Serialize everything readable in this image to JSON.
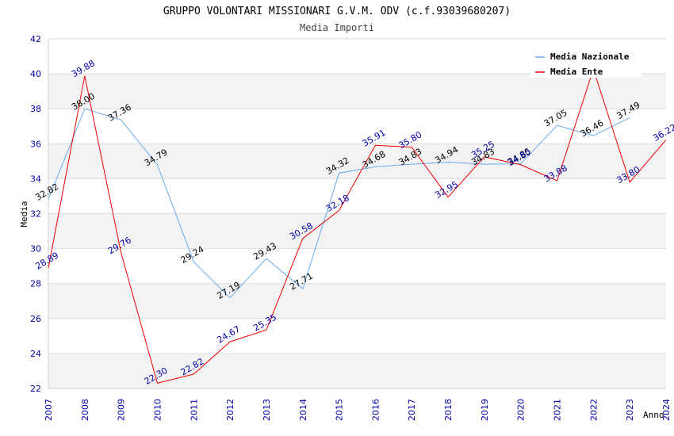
{
  "chart_data": {
    "type": "line",
    "title": "GRUPPO VOLONTARI MISSIONARI G.V.M. ODV (c.f.93039680207)",
    "subtitle": "Media Importi",
    "xlabel": "Anno",
    "ylabel": "Media",
    "ylim": [
      22,
      42
    ],
    "yticks": [
      "22",
      "24",
      "26",
      "28",
      "30",
      "32",
      "34",
      "36",
      "38",
      "40",
      "42"
    ],
    "x": [
      "2007",
      "2008",
      "2009",
      "2010",
      "2011",
      "2012",
      "2013",
      "2014",
      "2015",
      "2016",
      "2017",
      "2018",
      "2019",
      "2020",
      "2021",
      "2022",
      "2023",
      "2024"
    ],
    "legend_position": "top-right",
    "series": [
      {
        "name": "Media Nazionale",
        "color": "#66aaee",
        "label_color": "#000000",
        "values": [
          32.82,
          38.0,
          37.36,
          34.79,
          29.24,
          27.19,
          29.43,
          27.71,
          34.32,
          34.68,
          34.83,
          34.94,
          34.83,
          34.85,
          37.05,
          36.46,
          37.49,
          null
        ],
        "labels": [
          "32.82",
          "38.00",
          "37.36",
          "34.79",
          "29.24",
          "27.19",
          "29.43",
          "27.71",
          "34.32",
          "34.68",
          "34.83",
          "34.94",
          "34.83",
          "34.85",
          "37.05",
          "36.46",
          "37.49",
          ""
        ]
      },
      {
        "name": "Media Ente",
        "color": "#ee0000",
        "label_color": "#0000aa",
        "values": [
          28.89,
          39.88,
          29.76,
          22.3,
          22.82,
          24.67,
          25.35,
          30.58,
          32.18,
          35.91,
          35.8,
          32.95,
          35.25,
          34.8,
          33.88,
          40.27,
          33.8,
          36.22
        ],
        "labels": [
          "28.89",
          "39.88",
          "29.76",
          "22.30",
          "22.82",
          "24.67",
          "25.35",
          "30.58",
          "32.18",
          "35.91",
          "35.80",
          "32.95",
          "35.25",
          "34.80",
          "33.88",
          "",
          "33.80",
          "36.22"
        ]
      }
    ]
  }
}
